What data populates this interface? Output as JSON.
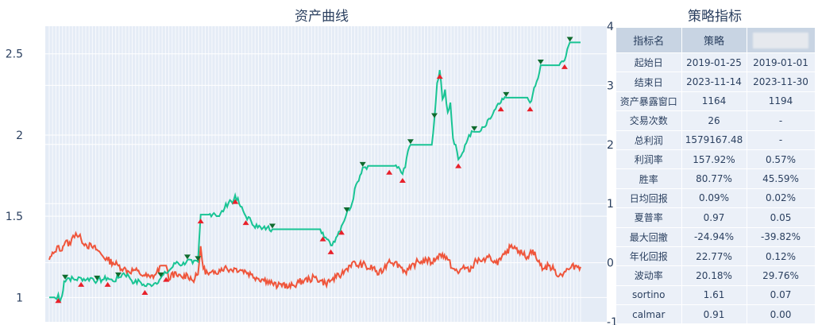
{
  "titles": {
    "chart": "资产曲线",
    "table": "策略指标"
  },
  "colors": {
    "strategy_line": "#19c494",
    "benchmark_line": "#ef553b",
    "buy_marker": "#e8202a",
    "sell_marker": "#0f6b2e",
    "plot_bg": "#e5ecf6",
    "header_bg": "#c8d4e3",
    "cell_bg": "#ebf0f8"
  },
  "chart_data": {
    "type": "line",
    "title": "资产曲线",
    "left_axis": {
      "range": [
        0.85,
        2.67
      ],
      "ticks": [
        1,
        1.5,
        2,
        2.5
      ]
    },
    "right_axis": {
      "range": [
        -1,
        4
      ],
      "ticks": [
        -1,
        0,
        1,
        2,
        3,
        4
      ]
    },
    "grid": true,
    "x_range": [
      0,
      100
    ],
    "series": [
      {
        "axis": "left",
        "markers_at_trades": true,
        "points": [
          [
            0,
            1.0
          ],
          [
            1,
            1.0
          ],
          [
            1.4,
            0.99
          ],
          [
            1.7,
            1.02
          ],
          [
            2,
            0.97
          ],
          [
            2.4,
            1.01
          ],
          [
            2.8,
            1.1
          ],
          [
            3.5,
            1.12
          ],
          [
            5,
            1.11
          ],
          [
            6,
            1.12
          ],
          [
            7,
            1.11
          ],
          [
            8,
            1.12
          ],
          [
            9,
            1.1
          ],
          [
            10,
            1.11
          ],
          [
            11,
            1.12
          ],
          [
            12,
            1.1
          ],
          [
            13,
            1.12
          ],
          [
            14,
            1.15
          ],
          [
            15,
            1.13
          ],
          [
            16,
            1.09
          ],
          [
            17,
            1.1
          ],
          [
            18,
            1.07
          ],
          [
            19,
            1.08
          ],
          [
            20,
            1.09
          ],
          [
            21,
            1.12
          ],
          [
            22,
            1.15
          ],
          [
            23,
            1.18
          ],
          [
            24,
            1.22
          ],
          [
            25,
            1.2
          ],
          [
            26,
            1.23
          ],
          [
            27,
            1.21
          ],
          [
            28,
            1.22
          ],
          [
            28.5,
            1.51
          ],
          [
            30,
            1.51
          ],
          [
            31,
            1.52
          ],
          [
            32,
            1.5
          ],
          [
            33,
            1.55
          ],
          [
            34,
            1.6
          ],
          [
            34.5,
            1.58
          ],
          [
            35,
            1.63
          ],
          [
            36,
            1.56
          ],
          [
            37,
            1.5
          ],
          [
            38,
            1.47
          ],
          [
            38.5,
            1.44
          ],
          [
            39,
            1.45
          ],
          [
            40,
            1.42
          ],
          [
            41,
            1.43
          ],
          [
            42,
            1.42
          ],
          [
            45,
            1.42
          ],
          [
            50,
            1.42
          ],
          [
            51,
            1.42
          ],
          [
            51.5,
            1.4
          ],
          [
            52,
            1.37
          ],
          [
            53,
            1.32
          ],
          [
            54,
            1.37
          ],
          [
            55,
            1.44
          ],
          [
            56,
            1.52
          ],
          [
            57,
            1.58
          ],
          [
            57.5,
            1.67
          ],
          [
            58,
            1.71
          ],
          [
            59,
            1.8
          ],
          [
            60,
            1.81
          ],
          [
            62,
            1.81
          ],
          [
            64,
            1.81
          ],
          [
            65,
            1.81
          ],
          [
            66,
            1.79
          ],
          [
            66.5,
            1.76
          ],
          [
            67,
            1.8
          ],
          [
            67.5,
            1.9
          ],
          [
            68,
            1.94
          ],
          [
            70,
            1.94
          ],
          [
            72,
            1.94
          ],
          [
            72.5,
            2.1
          ],
          [
            73,
            2.32
          ],
          [
            73.5,
            2.4
          ],
          [
            74,
            2.22
          ],
          [
            74.5,
            2.28
          ],
          [
            75,
            2.14
          ],
          [
            75.5,
            2.2
          ],
          [
            76,
            1.98
          ],
          [
            76.5,
            1.94
          ],
          [
            77,
            1.85
          ],
          [
            78,
            1.9
          ],
          [
            79,
            2.0
          ],
          [
            80,
            2.02
          ],
          [
            81,
            2.02
          ],
          [
            82,
            2.05
          ],
          [
            83,
            2.1
          ],
          [
            84,
            2.16
          ],
          [
            85,
            2.2
          ],
          [
            86,
            2.23
          ],
          [
            88,
            2.23
          ],
          [
            90,
            2.23
          ],
          [
            90.5,
            2.2
          ],
          [
            91,
            2.25
          ],
          [
            92,
            2.35
          ],
          [
            92.5,
            2.43
          ],
          [
            94,
            2.43
          ],
          [
            96,
            2.43
          ],
          [
            97,
            2.46
          ],
          [
            98,
            2.57
          ],
          [
            100,
            2.57
          ]
        ]
      },
      {
        "axis": "right",
        "points": [
          [
            0,
            0.05
          ],
          [
            1,
            0.18
          ],
          [
            1.5,
            0.28
          ],
          [
            2,
            0.2
          ],
          [
            3,
            0.35
          ],
          [
            4,
            0.31
          ],
          [
            4.5,
            0.46
          ],
          [
            5,
            0.5
          ],
          [
            6,
            0.4
          ],
          [
            7,
            0.3
          ],
          [
            8,
            0.27
          ],
          [
            9,
            0.22
          ],
          [
            10,
            0.12
          ],
          [
            11,
            0.05
          ],
          [
            12,
            0.0
          ],
          [
            13,
            -0.05
          ],
          [
            14,
            -0.1
          ],
          [
            15,
            -0.15
          ],
          [
            16,
            -0.12
          ],
          [
            17,
            -0.18
          ],
          [
            18,
            -0.22
          ],
          [
            19,
            -0.25
          ],
          [
            20,
            -0.2
          ],
          [
            21,
            -0.05
          ],
          [
            22,
            -0.05
          ],
          [
            22.5,
            -0.3
          ],
          [
            23,
            -0.18
          ],
          [
            24,
            -0.22
          ],
          [
            25,
            -0.25
          ],
          [
            26,
            -0.2
          ],
          [
            27,
            -0.3
          ],
          [
            28,
            -0.2
          ],
          [
            28.5,
            0.28
          ],
          [
            29,
            -0.1
          ],
          [
            30,
            -0.2
          ],
          [
            31,
            -0.18
          ],
          [
            32,
            -0.12
          ],
          [
            33,
            -0.08
          ],
          [
            34,
            -0.12
          ],
          [
            35,
            -0.1
          ],
          [
            36,
            -0.12
          ],
          [
            37,
            -0.15
          ],
          [
            38,
            -0.2
          ],
          [
            39,
            -0.25
          ],
          [
            40,
            -0.28
          ],
          [
            41,
            -0.3
          ],
          [
            42,
            -0.35
          ],
          [
            43,
            -0.4
          ],
          [
            44,
            -0.35
          ],
          [
            45,
            -0.42
          ],
          [
            46,
            -0.38
          ],
          [
            47,
            -0.33
          ],
          [
            48,
            -0.3
          ],
          [
            49,
            -0.28
          ],
          [
            50,
            -0.25
          ],
          [
            51,
            -0.3
          ],
          [
            52,
            -0.35
          ],
          [
            53,
            -0.3
          ],
          [
            54,
            -0.25
          ],
          [
            55,
            -0.2
          ],
          [
            56,
            -0.1
          ],
          [
            57,
            0.0
          ],
          [
            58,
            -0.05
          ],
          [
            59,
            -0.02
          ],
          [
            60,
            -0.1
          ],
          [
            61,
            -0.08
          ],
          [
            62,
            -0.2
          ],
          [
            63,
            -0.1
          ],
          [
            64,
            0.05
          ],
          [
            65,
            0.0
          ],
          [
            66,
            -0.05
          ],
          [
            67,
            -0.15
          ],
          [
            68,
            -0.1
          ],
          [
            69,
            0.0
          ],
          [
            70,
            0.02
          ],
          [
            71,
            0.05
          ],
          [
            72,
            0.0
          ],
          [
            73,
            0.1
          ],
          [
            74,
            0.15
          ],
          [
            75,
            0.05
          ],
          [
            76,
            -0.1
          ],
          [
            77,
            -0.18
          ],
          [
            78,
            -0.05
          ],
          [
            79,
            -0.15
          ],
          [
            80,
            0.0
          ],
          [
            81,
            0.05
          ],
          [
            82,
            0.02
          ],
          [
            83,
            0.1
          ],
          [
            84,
            0.0
          ],
          [
            85,
            0.05
          ],
          [
            86,
            0.15
          ],
          [
            87,
            0.3
          ],
          [
            88,
            0.25
          ],
          [
            89,
            0.15
          ],
          [
            90,
            0.1
          ],
          [
            91,
            0.22
          ],
          [
            92,
            0.02
          ],
          [
            93,
            -0.1
          ],
          [
            94,
            -0.05
          ],
          [
            95,
            -0.12
          ],
          [
            96,
            -0.22
          ],
          [
            97,
            -0.15
          ],
          [
            98,
            -0.1
          ],
          [
            99,
            -0.05
          ],
          [
            100,
            -0.07
          ]
        ]
      }
    ],
    "buy_markers_x": [
      1.7,
      6,
      11,
      18,
      22,
      28.5,
      35,
      37,
      51.5,
      53,
      55,
      64,
      66.5,
      73.5,
      77,
      85,
      90.5,
      97
    ],
    "sell_markers_x": [
      3,
      9,
      13,
      21,
      26,
      28,
      42,
      56,
      59,
      68,
      72.5,
      80,
      86,
      92.5,
      98
    ],
    "x_grid_dense_lines": 160
  },
  "table": {
    "headers": [
      "指标名",
      "策略",
      ""
    ],
    "rows": [
      [
        "起始日",
        "2019-01-25",
        "2019-01-01"
      ],
      [
        "结束日",
        "2023-11-14",
        "2023-11-30"
      ],
      [
        "资产暴露窗口",
        "1164",
        "1194"
      ],
      [
        "交易次数",
        "26",
        "-"
      ],
      [
        "总利润",
        "1579167.48",
        "-"
      ],
      [
        "利润率",
        "157.92%",
        "0.57%"
      ],
      [
        "胜率",
        "80.77%",
        "45.59%"
      ],
      [
        "日均回报",
        "0.09%",
        "0.02%"
      ],
      [
        "夏普率",
        "0.97",
        "0.05"
      ],
      [
        "最大回撤",
        "-24.94%",
        "-39.82%"
      ],
      [
        "年化回报",
        "22.77%",
        "0.12%"
      ],
      [
        "波动率",
        "20.18%",
        "29.76%"
      ],
      [
        "sortino",
        "1.61",
        "0.07"
      ],
      [
        "calmar",
        "0.91",
        "0.00"
      ]
    ]
  }
}
